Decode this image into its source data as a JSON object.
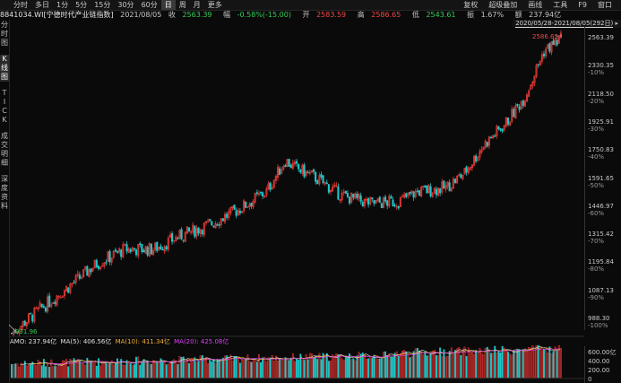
{
  "toolbar": {
    "periods": [
      {
        "label": "分时",
        "active": false
      },
      {
        "label": "多日",
        "active": false
      },
      {
        "label": "1分",
        "active": false
      },
      {
        "label": "5分",
        "active": false
      },
      {
        "label": "15分",
        "active": false
      },
      {
        "label": "30分",
        "active": false
      },
      {
        "label": "60分",
        "active": false
      },
      {
        "label": "日",
        "active": true
      },
      {
        "label": "周",
        "active": false
      },
      {
        "label": "月",
        "active": false
      },
      {
        "label": "更多",
        "active": false
      }
    ],
    "tools": [
      "复权",
      "超级叠加",
      "画线",
      "工具",
      "F9",
      "窗口"
    ]
  },
  "info": {
    "code_name": "8841034.WI[宁德时代产业链指数]",
    "date": "2021/08/05",
    "close_label": "收",
    "close": "2563.39",
    "change_label": "幅",
    "change": "-0.58%(-15.00)",
    "open_label": "开",
    "open": "2583.59",
    "high_label": "高",
    "high": "2586.65",
    "low_label": "低",
    "low": "2543.61",
    "amp_label": "振",
    "amp": "1.67%",
    "amount_label": "额",
    "amount": "237.94亿"
  },
  "sidebar": [
    "分时图",
    "K线图",
    "TICK",
    "成交明细",
    "深度资料"
  ],
  "range": {
    "text": "2020/05/28-2021/08/05(292日)",
    "mark": "▸"
  },
  "yaxis": [
    {
      "price": "2563.39",
      "pct": ""
    },
    {
      "price": "2330.35",
      "pct": "-10%"
    },
    {
      "price": "2118.50",
      "pct": "-20%"
    },
    {
      "price": "1925.91",
      "pct": "-30%"
    },
    {
      "price": "1750.83",
      "pct": "-40%"
    },
    {
      "price": "1591.65",
      "pct": "-50%"
    },
    {
      "price": "1446.97",
      "pct": "-60%"
    },
    {
      "price": "1315.42",
      "pct": "-70%"
    },
    {
      "price": "1195.84",
      "pct": "-80%"
    },
    {
      "price": "1087.13",
      "pct": "-90%"
    },
    {
      "price": "988.30",
      "pct": "-100%"
    }
  ],
  "markers": {
    "high": "2586.65",
    "low": "931.96"
  },
  "amo": {
    "amo_label": "AMO: 237.94亿",
    "ma5_label": "MA(5): 406.56亿",
    "ma10_label": "MA(10): 411.34亿",
    "ma20_label": "MA(20): 425.08亿"
  },
  "vaxis": [
    "600.00亿",
    "400.00",
    "200.00",
    "0"
  ],
  "colors": {
    "up": "#e53935",
    "down": "#1ec8c8",
    "ma5": "#e0e0e0",
    "ma10": "#f2b035",
    "ma20": "#e040fb",
    "price_red": "#f04848",
    "price_green": "#33cc55"
  },
  "chart_data": {
    "type": "candlestick",
    "period": "daily",
    "scale": "log",
    "range": "2020/05/28-2021/08/05",
    "approx_close_path": [
      [
        0,
        940
      ],
      [
        15,
        1020
      ],
      [
        30,
        1100
      ],
      [
        45,
        1190
      ],
      [
        60,
        1250
      ],
      [
        75,
        1250
      ],
      [
        90,
        1310
      ],
      [
        105,
        1360
      ],
      [
        120,
        1430
      ],
      [
        135,
        1520
      ],
      [
        145,
        1690
      ],
      [
        150,
        1650
      ],
      [
        160,
        1600
      ],
      [
        175,
        1500
      ],
      [
        190,
        1460
      ],
      [
        205,
        1470
      ],
      [
        215,
        1520
      ],
      [
        230,
        1540
      ],
      [
        240,
        1620
      ],
      [
        250,
        1780
      ],
      [
        262,
        1920
      ],
      [
        272,
        2100
      ],
      [
        282,
        2450
      ],
      [
        288,
        2520
      ],
      [
        292,
        2563
      ]
    ],
    "yaxis_prices": [
      2563.39,
      2330.35,
      2118.5,
      1925.91,
      1750.83,
      1591.65,
      1446.97,
      1315.42,
      1195.84,
      1087.13,
      988.3
    ],
    "volume_axis": [
      0,
      200,
      400,
      600
    ]
  }
}
